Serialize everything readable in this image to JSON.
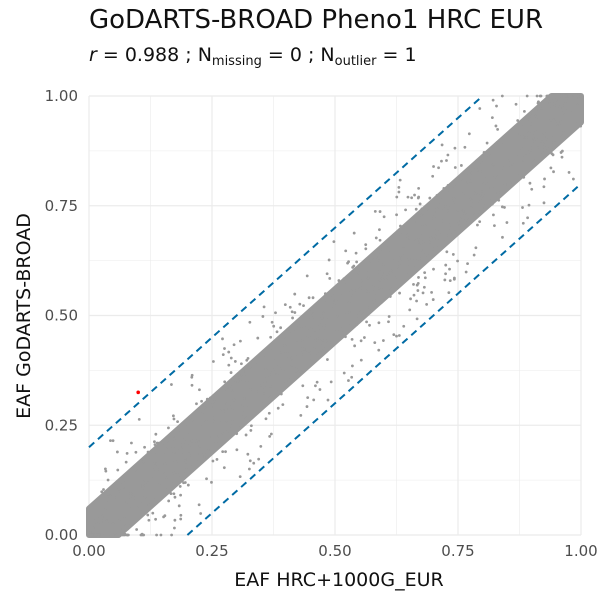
{
  "chart_data": {
    "type": "scatter",
    "title": "GoDARTS-BROAD Pheno1 HRC EUR",
    "subtitle": {
      "r_symbol": "r",
      "r_value": "= 0.988 ; N",
      "missing_sub": "missing",
      "missing_value": "= 0 ; N",
      "outlier_sub": "outlier",
      "outlier_value": "= 1"
    },
    "xlabel": "EAF HRC+1000G_EUR",
    "ylabel": "EAF GoDARTS-BROAD",
    "xlim": [
      0,
      1
    ],
    "ylim": [
      0,
      1
    ],
    "x_ticks": [
      "0.00",
      "0.25",
      "0.50",
      "0.75",
      "1.00"
    ],
    "y_ticks": [
      "0.00",
      "0.25",
      "0.50",
      "0.75",
      "1.00"
    ],
    "grid": true,
    "reference_lines": [
      {
        "slope": 1,
        "intercept": 0.2
      },
      {
        "slope": 1,
        "intercept": -0.2
      }
    ],
    "outlier_point": {
      "x": 0.1,
      "y": 0.325
    },
    "band": {
      "center_slope": 1,
      "width": 0.06
    },
    "colors": {
      "points": "#999999",
      "outlier": "#ff0000",
      "reference_line": "#006ba4",
      "grid": "#ebebeb"
    }
  }
}
